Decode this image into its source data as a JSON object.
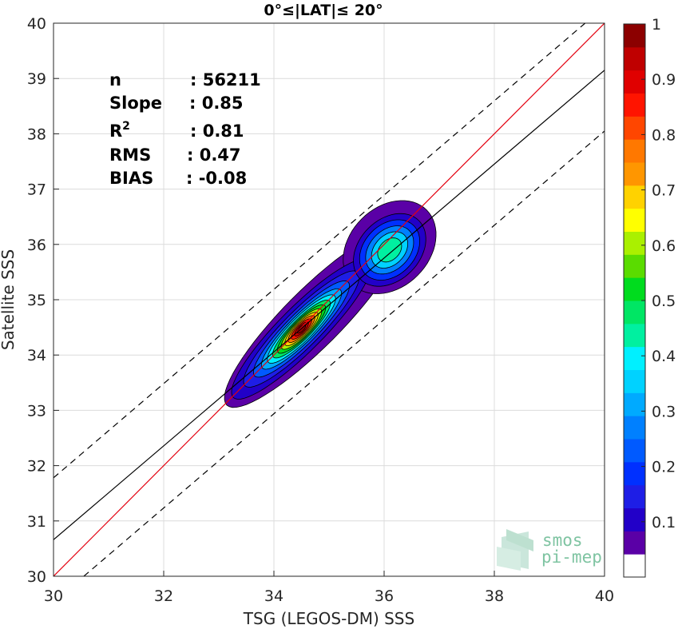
{
  "chart_data": {
    "type": "heatmap",
    "title": "0°≤|LAT|≤ 20°",
    "xlabel": "TSG (LEGOS-DM) SSS",
    "ylabel": "Satellite SSS",
    "xlim": [
      30,
      40
    ],
    "ylim": [
      30,
      40
    ],
    "xticks": [
      "30",
      "32",
      "34",
      "36",
      "38",
      "40"
    ],
    "yticks": [
      "30",
      "31",
      "32",
      "33",
      "34",
      "35",
      "36",
      "37",
      "38",
      "39",
      "40"
    ],
    "grid": true,
    "stats": [
      {
        "label": "n",
        "value": ": 56211"
      },
      {
        "label": "Slope",
        "value": ": 0.85"
      },
      {
        "label": "R",
        "sup": "2",
        "value": ": 0.81"
      },
      {
        "label": "RMS",
        "value": ": 0.47"
      },
      {
        "label": "BIAS",
        "value": ": -0.08"
      }
    ],
    "reference_lines": [
      {
        "name": "one-to-one",
        "color": "#e3000f",
        "style": "solid",
        "points": [
          [
            30,
            30
          ],
          [
            40,
            40
          ]
        ]
      },
      {
        "name": "regression",
        "color": "#000000",
        "style": "solid",
        "points": [
          [
            30,
            30.66
          ],
          [
            40,
            39.15
          ]
        ]
      },
      {
        "name": "upper-bound",
        "color": "#000000",
        "style": "dashed",
        "points": [
          [
            30,
            31.78
          ],
          [
            40,
            40.3
          ]
        ]
      },
      {
        "name": "lower-bound",
        "color": "#000000",
        "style": "dashed",
        "points": [
          [
            30.55,
            30
          ],
          [
            40,
            38.05
          ]
        ]
      }
    ],
    "density_peaks": [
      {
        "x": 34.45,
        "y": 34.45,
        "max": 1.0
      },
      {
        "x": 36.1,
        "y": 35.9,
        "max": 0.5
      }
    ],
    "colorbar": {
      "range": [
        0,
        1
      ],
      "ticks": [
        "0.1",
        "0.2",
        "0.3",
        "0.4",
        "0.5",
        "0.6",
        "0.7",
        "0.8",
        "0.9",
        "1"
      ],
      "colors": [
        "#ffffff",
        "#5a00a6",
        "#2200c8",
        "#1e1ee6",
        "#0030ff",
        "#005aff",
        "#0080ff",
        "#00aaff",
        "#00d2ff",
        "#00f0ff",
        "#00f0a0",
        "#00e664",
        "#00dc1e",
        "#5adc00",
        "#aaf000",
        "#ffff00",
        "#ffd200",
        "#ff9600",
        "#ff7800",
        "#ff4600",
        "#ff1400",
        "#e00000",
        "#bf0000",
        "#8c0000"
      ]
    },
    "watermark": {
      "line1": "smos",
      "line2": "pi-mep"
    }
  }
}
